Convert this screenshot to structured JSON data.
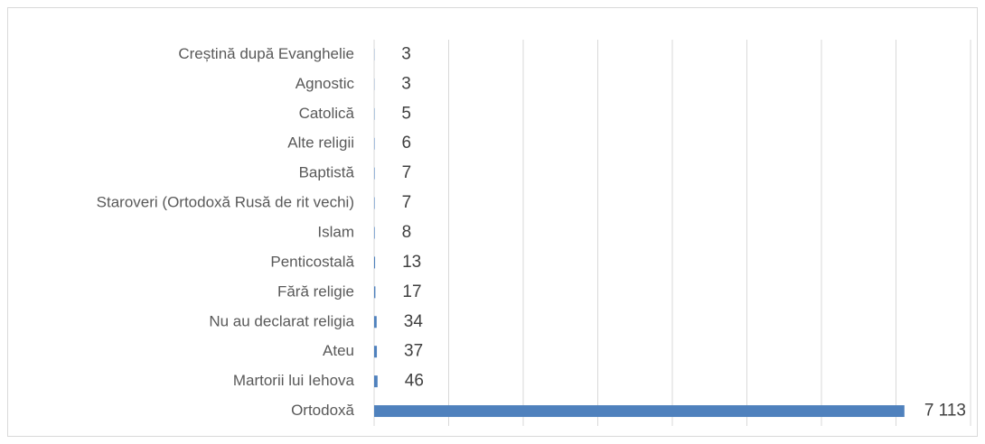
{
  "chart_data": {
    "type": "bar",
    "orientation": "horizontal",
    "categories": [
      "Creștină după Evanghelie",
      "Agnostic",
      "Catolică",
      "Alte religii",
      "Baptistă",
      "Staroveri (Ortodoxă Rusă de rit vechi)",
      "Islam",
      "Penticostală",
      "Fără religie",
      "Nu au declarat religia",
      "Ateu",
      "Martorii lui Iehova",
      "Ortodoxă"
    ],
    "values": [
      3,
      3,
      5,
      6,
      7,
      7,
      8,
      13,
      17,
      34,
      37,
      46,
      7113
    ],
    "value_labels": [
      "3",
      "3",
      "5",
      "6",
      "7",
      "7",
      "8",
      "13",
      "17",
      "34",
      "37",
      "46",
      "7 113"
    ],
    "color": "#4f81bd",
    "xlim": [
      0,
      8000
    ],
    "xticks": [
      0,
      1000,
      2000,
      3000,
      4000,
      5000,
      6000,
      7000,
      8000
    ],
    "grid": true
  }
}
